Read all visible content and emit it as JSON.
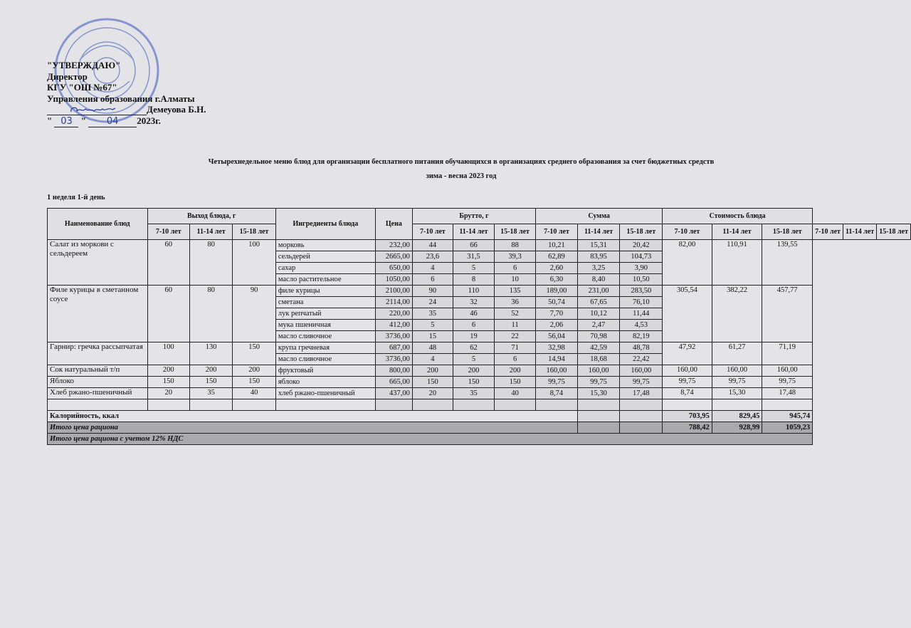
{
  "approval": {
    "heading": "\"УТВЕРЖДАЮ\"",
    "position": "Директор",
    "org": "КГУ \"ОШ №67\"",
    "dept": "Управления образования г.Алматы",
    "signer": "Демеуова Б.Н.",
    "day": "03",
    "month": "04",
    "year": "2023г.",
    "stamp_color": "#3a56b8"
  },
  "title": {
    "line1": "Четырехнедельное меню блюд для организации бесплатного питания обучающихся в организациях среднего образования за счет бюджетных средств",
    "line2": "зима - весна 2023 год"
  },
  "week_label": "1 неделя 1-й день",
  "headers": {
    "dish": "Наименование блюд",
    "yield": "Выход блюда, г",
    "ingredients": "Ингредиенты блюда",
    "price": "Цена",
    "brutto": "Брутто, г",
    "sum": "Сумма",
    "cost": "Стоимость блюда",
    "ages": [
      "7-10 лет",
      "11-14 лет",
      "15-18 лет"
    ]
  },
  "dishes": [
    {
      "name": "Салат из моркови с сельдереем",
      "yield": [
        "60",
        "80",
        "100"
      ],
      "cost": [
        "82,00",
        "110,91",
        "139,55"
      ],
      "rows": 4
    },
    {
      "name": "Филе курицы в сметанном соусе",
      "yield": [
        "60",
        "80",
        "90"
      ],
      "cost": [
        "305,54",
        "382,22",
        "457,77"
      ],
      "rows": 5
    },
    {
      "name": "Гарнир: гречка рассыпчатая",
      "yield": [
        "100",
        "130",
        "150"
      ],
      "cost": [
        "47,92",
        "61,27",
        "71,19"
      ],
      "rows": 2
    },
    {
      "name": "Сок натуральный т/п",
      "yield": [
        "200",
        "200",
        "200"
      ],
      "cost": [
        "160,00",
        "160,00",
        "160,00"
      ],
      "rows": 1
    },
    {
      "name": "Яблоко",
      "yield": [
        "150",
        "150",
        "150"
      ],
      "cost": [
        "99,75",
        "99,75",
        "99,75"
      ],
      "rows": 1
    },
    {
      "name": "Хлеб ржано-пшеничный",
      "yield": [
        "20",
        "35",
        "40"
      ],
      "cost": [
        "8,74",
        "15,30",
        "17,48"
      ],
      "rows": 1
    }
  ],
  "ingredients": [
    {
      "name": "морковь",
      "price": "232,00",
      "brutto": [
        "44",
        "66",
        "88"
      ],
      "sum": [
        "10,21",
        "15,31",
        "20,42"
      ]
    },
    {
      "name": "сельдерей",
      "price": "2665,00",
      "brutto": [
        "23,6",
        "31,5",
        "39,3"
      ],
      "sum": [
        "62,89",
        "83,95",
        "104,73"
      ]
    },
    {
      "name": "сахар",
      "price": "650,00",
      "brutto": [
        "4",
        "5",
        "6"
      ],
      "sum": [
        "2,60",
        "3,25",
        "3,90"
      ]
    },
    {
      "name": "масло растительное",
      "price": "1050,00",
      "brutto": [
        "6",
        "8",
        "10"
      ],
      "sum": [
        "6,30",
        "8,40",
        "10,50"
      ]
    },
    {
      "name": "филе курицы",
      "price": "2100,00",
      "brutto": [
        "90",
        "110",
        "135"
      ],
      "sum": [
        "189,00",
        "231,00",
        "283,50"
      ]
    },
    {
      "name": "сметана",
      "price": "2114,00",
      "brutto": [
        "24",
        "32",
        "36"
      ],
      "sum": [
        "50,74",
        "67,65",
        "76,10"
      ]
    },
    {
      "name": "лук репчатый",
      "price": "220,00",
      "brutto": [
        "35",
        "46",
        "52"
      ],
      "sum": [
        "7,70",
        "10,12",
        "11,44"
      ]
    },
    {
      "name": "мука пшеничная",
      "price": "412,00",
      "brutto": [
        "5",
        "6",
        "11"
      ],
      "sum": [
        "2,06",
        "2,47",
        "4,53"
      ]
    },
    {
      "name": "масло сливочное",
      "price": "3736,00",
      "brutto": [
        "15",
        "19",
        "22"
      ],
      "sum": [
        "56,04",
        "70,98",
        "82,19"
      ]
    },
    {
      "name": "крупа гречневая",
      "price": "687,00",
      "brutto": [
        "48",
        "62",
        "71"
      ],
      "sum": [
        "32,98",
        "42,59",
        "48,78"
      ]
    },
    {
      "name": "масло сливочное",
      "price": "3736,00",
      "brutto": [
        "4",
        "5",
        "6"
      ],
      "sum": [
        "14,94",
        "18,68",
        "22,42"
      ]
    },
    {
      "name": "фруктовый",
      "price": "800,00",
      "brutto": [
        "200",
        "200",
        "200"
      ],
      "sum": [
        "160,00",
        "160,00",
        "160,00"
      ]
    },
    {
      "name": "яблоко",
      "price": "665,00",
      "brutto": [
        "150",
        "150",
        "150"
      ],
      "sum": [
        "99,75",
        "99,75",
        "99,75"
      ]
    },
    {
      "name": "хлеб ржано-пшеничный",
      "price": "437,00",
      "brutto": [
        "20",
        "35",
        "40"
      ],
      "sum": [
        "8,74",
        "15,30",
        "17,48"
      ]
    }
  ],
  "footer": {
    "calories_label": "Калорийность, ккал",
    "calories": [
      "703,95",
      "829,45",
      "945,74"
    ],
    "total_label": "Итого цена рациона",
    "total": [
      "788,42",
      "928,99",
      "1059,23"
    ],
    "total_vat_label": "Итого цена рациона с учетом 12% НДС"
  }
}
